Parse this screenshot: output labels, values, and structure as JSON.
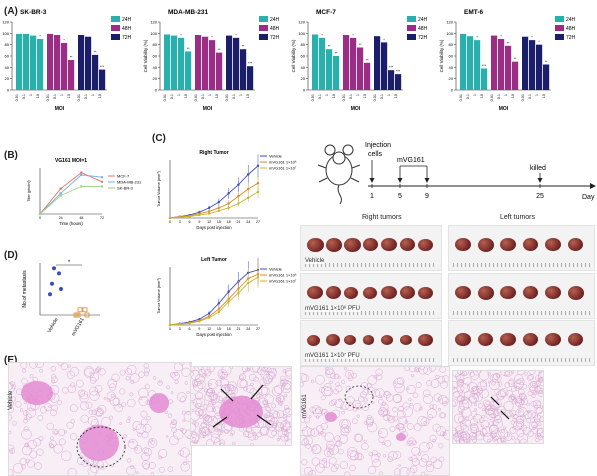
{
  "panels": {
    "A": "(A)",
    "B": "(B)",
    "C": "(C)",
    "D": "(D)",
    "E": "(E)"
  },
  "colors": {
    "h24": "#2ab0ac",
    "h48": "#9b2d84",
    "h72": "#1b1f6b",
    "vehicle": "#3b4cc0",
    "low": "#e08a1e",
    "high": "#c9b52a",
    "mcf7": "#f07060",
    "mda": "#6fb2e8",
    "skbr3": "#9bd27a",
    "tissue": "#e48bd2",
    "tumor": "#7a2a2a"
  },
  "legend": [
    "24H",
    "48H",
    "72H"
  ],
  "chart_data": [
    {
      "type": "bar",
      "title": "SK-BR-3",
      "ylabel": "Cell Viability (%)",
      "xlabel": "MOI",
      "ylim": [
        0,
        120
      ],
      "categories": [
        "0.01",
        "0.1",
        "1",
        "10"
      ],
      "series": [
        {
          "name": "24H",
          "values": [
            99,
            99,
            96,
            90
          ]
        },
        {
          "name": "48H",
          "values": [
            99,
            97,
            83,
            53
          ]
        },
        {
          "name": "72H",
          "values": [
            97,
            94,
            62,
            36
          ]
        }
      ]
    },
    {
      "type": "bar",
      "title": "MDA-MB-231",
      "ylabel": "Cell Viability (%)",
      "xlabel": "MOI",
      "ylim": [
        0,
        120
      ],
      "categories": [
        "0.01",
        "0.1",
        "1",
        "10"
      ],
      "series": [
        {
          "name": "24H",
          "values": [
            98,
            96,
            92,
            68
          ]
        },
        {
          "name": "48H",
          "values": [
            97,
            94,
            88,
            66
          ]
        },
        {
          "name": "72H",
          "values": [
            96,
            92,
            72,
            42
          ]
        }
      ]
    },
    {
      "type": "bar",
      "title": "MCF-7",
      "ylabel": "Cell Viability (%)",
      "xlabel": "MOI",
      "ylim": [
        0,
        120
      ],
      "categories": [
        "0.01",
        "0.1",
        "1",
        "10"
      ],
      "series": [
        {
          "name": "24H",
          "values": [
            98,
            92,
            72,
            60
          ]
        },
        {
          "name": "48H",
          "values": [
            97,
            92,
            75,
            48
          ]
        },
        {
          "name": "72H",
          "values": [
            95,
            84,
            35,
            28
          ]
        }
      ]
    },
    {
      "type": "bar",
      "title": "EMT-6",
      "ylabel": "Cell Viability (%)",
      "xlabel": "MOI",
      "ylim": [
        0,
        120
      ],
      "categories": [
        "0.01",
        "0.1",
        "1",
        "10"
      ],
      "series": [
        {
          "name": "24H",
          "values": [
            99,
            95,
            88,
            38
          ]
        },
        {
          "name": "48H",
          "values": [
            96,
            90,
            78,
            50
          ]
        },
        {
          "name": "72H",
          "values": [
            94,
            88,
            80,
            45
          ]
        }
      ]
    },
    {
      "type": "line",
      "title": "VG161 MOI=1",
      "xlabel": "Time (hours)",
      "ylabel": "Titer (pfu/ml)",
      "x": [
        0,
        24,
        48,
        72
      ],
      "xticks": [
        "0",
        "24",
        "48",
        "72"
      ],
      "series": [
        {
          "name": "MCF-7",
          "values": [
            0,
            55,
            90,
            70
          ]
        },
        {
          "name": "MDA-MB-231",
          "values": [
            0,
            45,
            85,
            80
          ]
        },
        {
          "name": "SK-BR-3",
          "values": [
            0,
            40,
            60,
            60
          ]
        }
      ]
    },
    {
      "type": "line",
      "title": "Right Tumor",
      "xlabel": "Days post injection",
      "ylabel": "Tumor Volume (mm³)",
      "x": [
        0,
        3,
        6,
        9,
        12,
        15,
        18,
        21,
        24,
        27
      ],
      "xticks": [
        "0",
        "3",
        "6",
        "9",
        "12",
        "15",
        "18",
        "21",
        "24",
        "27"
      ],
      "series": [
        {
          "name": "Vehicle",
          "values": [
            0,
            10,
            20,
            40,
            70,
            110,
            170,
            230,
            300,
            360
          ]
        },
        {
          "name": "mVG161 1×10⁶",
          "values": [
            0,
            8,
            15,
            30,
            45,
            70,
            100,
            150,
            200,
            240
          ]
        },
        {
          "name": "mVG161 1×10⁷",
          "values": [
            0,
            6,
            10,
            20,
            30,
            50,
            70,
            100,
            140,
            180
          ]
        }
      ]
    },
    {
      "type": "line",
      "title": "Left Tumor",
      "xlabel": "Days post injection",
      "ylabel": "Tumor Volume (mm³)",
      "x": [
        0,
        3,
        6,
        9,
        12,
        15,
        18,
        21,
        24,
        27
      ],
      "xticks": [
        "0",
        "3",
        "6",
        "9",
        "12",
        "15",
        "18",
        "21",
        "24",
        "27"
      ],
      "series": [
        {
          "name": "Vehicle",
          "values": [
            0,
            10,
            20,
            40,
            80,
            150,
            230,
            300,
            360,
            380
          ]
        },
        {
          "name": "mVG161 1×10⁶",
          "values": [
            0,
            8,
            15,
            30,
            60,
            110,
            180,
            250,
            320,
            350
          ]
        },
        {
          "name": "mVG161 1×10⁷",
          "values": [
            0,
            6,
            12,
            25,
            50,
            90,
            160,
            220,
            290,
            330
          ]
        }
      ]
    },
    {
      "type": "scatter",
      "xlabel": "",
      "ylabel": "No.of metastasis",
      "categories": [
        "Vehicle",
        "mVG161"
      ],
      "significance": "*",
      "series": [
        {
          "name": "Vehicle",
          "values": [
            9,
            8,
            6,
            5,
            4
          ]
        },
        {
          "name": "mVG161",
          "values": [
            1,
            1,
            0,
            0,
            0
          ]
        }
      ]
    }
  ],
  "timeline": {
    "injection_label": "Injection\ncells",
    "mvg_label": "mVG161",
    "killed_label": "killed",
    "day_label": "Day",
    "days": [
      "1",
      "5",
      "9",
      "25"
    ]
  },
  "photos": {
    "right_header": "Right tumors",
    "left_header": "Left tumors",
    "row_labels": [
      "Vehicle",
      "mVG161 1×10⁶ PFU",
      "mVG161 1×10⁷ PFU"
    ]
  },
  "histology": {
    "left_label": "Vehicle",
    "right_label": "mVG161"
  },
  "sig": {
    "star": "*",
    "two": "**",
    "three": "***"
  }
}
